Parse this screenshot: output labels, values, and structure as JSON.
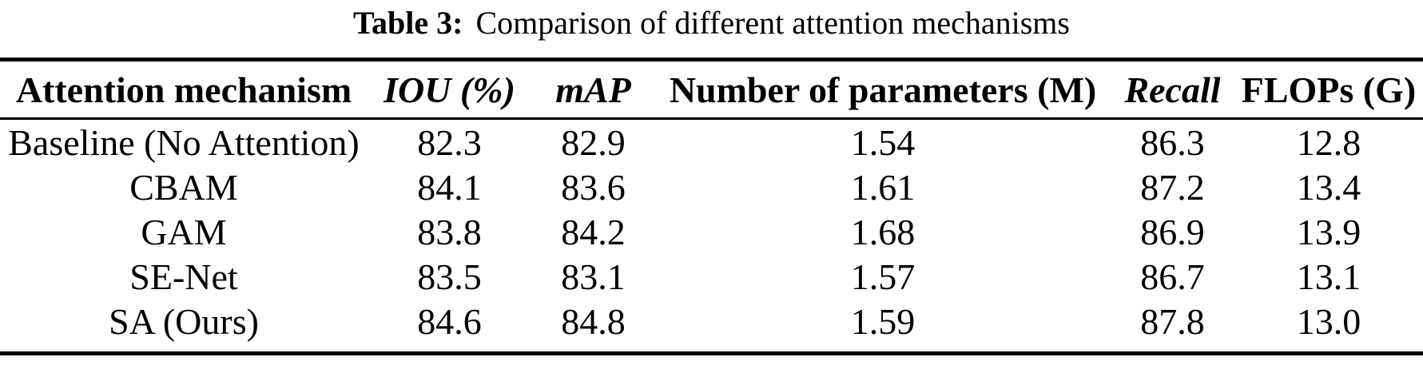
{
  "colors": {
    "text": "#000000",
    "background": "#ffffff",
    "rule": "#000000"
  },
  "caption": {
    "label": "Table 3:",
    "text": "Comparison of different attention mechanisms"
  },
  "table": {
    "columns": [
      {
        "label": "Attention mechanism"
      },
      {
        "label": "IOU (%)"
      },
      {
        "label": "mAP"
      },
      {
        "label": "Number of parameters (M)"
      },
      {
        "label": "Recall"
      },
      {
        "label": "FLOPs (G)"
      }
    ],
    "rows": [
      {
        "mechanism": "Baseline (No Attention)",
        "iou": "82.3",
        "map": "82.9",
        "params": "1.54",
        "recall": "86.3",
        "flops": "12.8"
      },
      {
        "mechanism": "CBAM",
        "iou": "84.1",
        "map": "83.6",
        "params": "1.61",
        "recall": "87.2",
        "flops": "13.4"
      },
      {
        "mechanism": "GAM",
        "iou": "83.8",
        "map": "84.2",
        "params": "1.68",
        "recall": "86.9",
        "flops": "13.9"
      },
      {
        "mechanism": "SE-Net",
        "iou": "83.5",
        "map": "83.1",
        "params": "1.57",
        "recall": "86.7",
        "flops": "13.1"
      },
      {
        "mechanism": "SA (Ours)",
        "iou": "84.6",
        "map": "84.8",
        "params": "1.59",
        "recall": "87.8",
        "flops": "13.0"
      }
    ]
  }
}
